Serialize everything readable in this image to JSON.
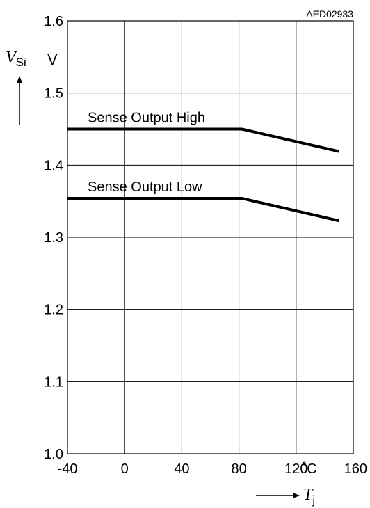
{
  "chart_data": {
    "type": "line",
    "figure_code": "AED02933",
    "xlabel": "T",
    "xlabel_subscript": "j",
    "x_unit": "˚C",
    "ylabel": "V",
    "ylabel_subscript": "Si",
    "y_unit": "V",
    "xlim": [
      -40,
      160
    ],
    "ylim": [
      1.0,
      1.6
    ],
    "x_ticks": [
      -40,
      0,
      40,
      80,
      120,
      160
    ],
    "x_tick_labels": [
      "-40",
      "0",
      "40",
      "80",
      "120",
      "160"
    ],
    "y_ticks": [
      1.0,
      1.1,
      1.2,
      1.3,
      1.4,
      1.5,
      1.6
    ],
    "y_tick_labels": [
      "1.0",
      "1.1",
      "1.2",
      "1.3",
      "1.4",
      "1.5",
      "1.6"
    ],
    "grid": true,
    "series": [
      {
        "name": "Sense Output High",
        "x": [
          -40,
          82,
          150
        ],
        "y": [
          1.45,
          1.45,
          1.419
        ]
      },
      {
        "name": "Sense Output Low",
        "x": [
          -40,
          82,
          150
        ],
        "y": [
          1.354,
          1.354,
          1.323
        ]
      }
    ]
  }
}
